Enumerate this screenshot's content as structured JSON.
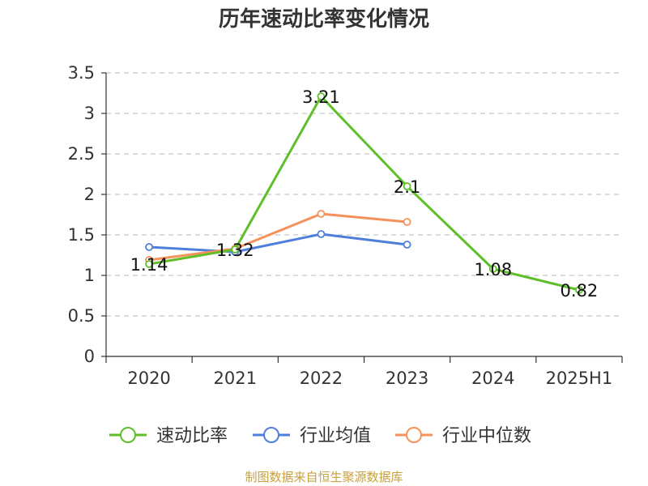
{
  "chart_data": {
    "type": "line",
    "title": "历年速动比率变化情况",
    "categories": [
      "2020",
      "2021",
      "2022",
      "2023",
      "2024",
      "2025H1"
    ],
    "ylim": [
      0,
      3.5
    ],
    "yticks": [
      0,
      0.5,
      1,
      1.5,
      2,
      2.5,
      3,
      3.5
    ],
    "ytick_labels": [
      "0",
      "0.5",
      "1",
      "1.5",
      "2",
      "2.5",
      "3",
      "3.5"
    ],
    "grid": true,
    "legend_position": "bottom",
    "series": [
      {
        "name": "速动比率",
        "color": "#5fbf2a",
        "values": [
          1.14,
          1.32,
          3.21,
          2.1,
          1.08,
          0.82
        ],
        "labels": [
          "1.14",
          "1.32",
          "3.21",
          "2.1",
          "1.08",
          "0.82"
        ]
      },
      {
        "name": "行业均值",
        "color": "#4f7fdc",
        "values": [
          1.35,
          1.29,
          1.51,
          1.38,
          null,
          null
        ]
      },
      {
        "name": "行业中位数",
        "color": "#f5915a",
        "values": [
          1.19,
          1.33,
          1.76,
          1.66,
          null,
          null
        ]
      }
    ]
  },
  "footer": {
    "source": "制图数据来自恒生聚源数据库"
  }
}
